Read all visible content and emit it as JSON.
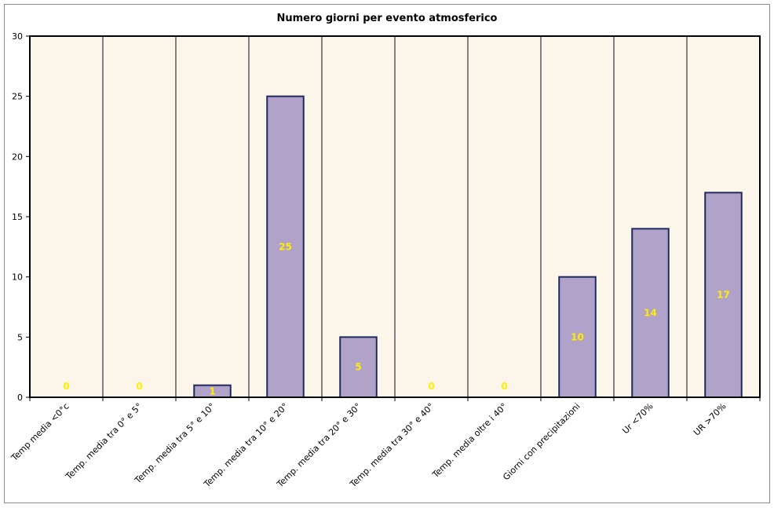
{
  "chart_data": {
    "type": "bar",
    "title": "Numero giorni per evento atmosferico",
    "categories": [
      "Temp media <0°c",
      "Temp. media tra 0° e 5°",
      "Temp. media tra 5° e 10°",
      "Temp. media tra 10° e 20°",
      "Temp. media tra 20° e 30°",
      "Temp. media tra 30° e 40°",
      "Temp. media oltre i 40°",
      "Giorni con precipitazioni",
      "Ur <70%",
      "UR >70%"
    ],
    "values": [
      0,
      0,
      1,
      25,
      5,
      0,
      0,
      10,
      14,
      17
    ],
    "data_labels": [
      "0",
      "0",
      "1",
      "25",
      "5",
      "0",
      "0",
      "10",
      "14",
      "17"
    ],
    "xlabel": "",
    "ylabel": "",
    "ylim": [
      0,
      30
    ],
    "yticks": [
      "0",
      "5",
      "10",
      "15",
      "20",
      "25",
      "30"
    ],
    "grid": "vertical category separators",
    "legend": "none",
    "colors": {
      "bar_fill": "#b0a2c8",
      "bar_border": "#1f2a5c",
      "plot_background": "#fcf6ea",
      "data_label": "#ffee00",
      "separator": "#808080"
    }
  }
}
